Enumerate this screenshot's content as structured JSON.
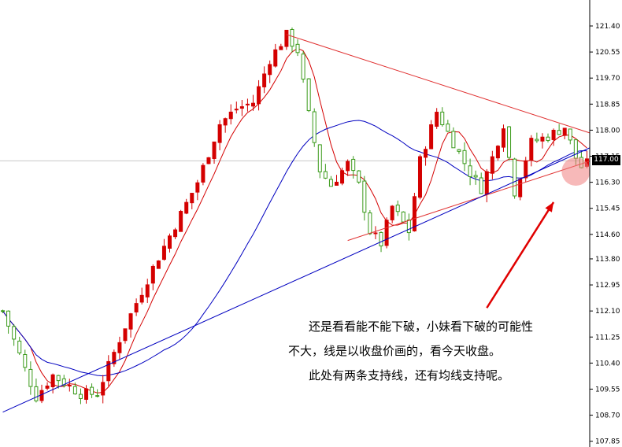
{
  "chart_data": {
    "type": "candlestick",
    "yticks": [
      "121.40",
      "120.55",
      "119.70",
      "118.85",
      "118.00",
      "117.15",
      "116.30",
      "115.45",
      "114.60",
      "113.80",
      "112.95",
      "112.10",
      "111.25",
      "110.40",
      "109.55",
      "108.70",
      "107.85"
    ],
    "ylim": [
      107.85,
      121.9
    ],
    "current_price": "117.00",
    "colors": {
      "up": "#d40000",
      "down": "#3a9a1a",
      "ma_short": "#d40000",
      "ma_long": "#0000c0",
      "trendline": "#e03030",
      "grid": "#c8c8c8",
      "highlight": "#f08080"
    },
    "ma_short_period_note": "",
    "trendlines": [
      {
        "name": "upper-resistance",
        "points": [
          [
            51,
            121.12
          ],
          [
            104,
            118.0
          ]
        ]
      },
      {
        "name": "lower-support-steep",
        "points": [
          [
            62,
            114.4
          ],
          [
            104,
            116.9
          ]
        ]
      },
      {
        "name": "lower-support-long",
        "points": [
          [
            0,
            108.8
          ],
          [
            104,
            117.3
          ]
        ]
      }
    ],
    "highlight_point": {
      "bar": 103,
      "price": 116.65
    },
    "arrow": {
      "from": [
        87,
        112.2
      ],
      "to": [
        99,
        115.65
      ]
    },
    "annotations": [
      "还是看看能不能下破，小妹看下破的可能性",
      "不大，线是以收盘价画的，看今天收盘。",
      "此处有两条支持线，还有均线支持呢。"
    ]
  }
}
